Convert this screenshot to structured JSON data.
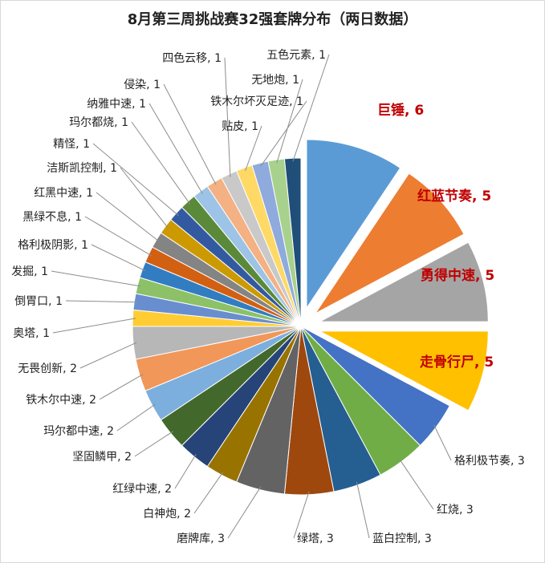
{
  "chart_data": {
    "type": "pie",
    "title": "8月第三周挑战赛32强套牌分布（两日数据）",
    "series": [
      {
        "name": "",
        "labels": [
          "巨锤",
          "红蓝节奏",
          "勇得中速",
          "走骨行尸",
          "格利极节奏",
          "红烧",
          "蓝白控制",
          "绿塔",
          "磨牌库",
          "白神炮",
          "红绿中速",
          "坚固鳞甲",
          "玛尔都中速",
          "铁木尔中速",
          "无畏创新",
          "奥塔",
          "倒胃口",
          "发掘",
          "格利极阴影",
          "黑绿不息",
          "红黑中速",
          "洁斯凯控制",
          "精怪",
          "玛尔都烧",
          "纳雅中速",
          "侵染",
          "四色云移",
          "贴皮",
          "铁木尔坏灭足迹",
          "无地炮",
          "五色元素"
        ],
        "values": [
          6,
          5,
          5,
          5,
          3,
          3,
          3,
          3,
          3,
          2,
          2,
          2,
          2,
          2,
          2,
          1,
          1,
          1,
          1,
          1,
          1,
          1,
          1,
          1,
          1,
          1,
          1,
          1,
          1,
          1,
          1
        ]
      }
    ],
    "colors": [
      "#5b9bd5",
      "#ed7d31",
      "#a5a5a5",
      "#ffc000",
      "#4472c4",
      "#70ad47",
      "#255e91",
      "#9e480e",
      "#636363",
      "#997300",
      "#264478",
      "#43682b",
      "#7cafdd",
      "#f1975a",
      "#b7b7b7",
      "#ffcd33",
      "#698ed0",
      "#8cc168",
      "#327dc2",
      "#d26012",
      "#848484",
      "#cc9a00",
      "#335aa1",
      "#5a8a39",
      "#9dc3e6",
      "#f4b183",
      "#c9c9c9",
      "#ffd966",
      "#8faadc",
      "#a9d18e",
      "#1f4e79"
    ],
    "exploded": [
      "巨锤",
      "红蓝节奏",
      "勇得中速",
      "走骨行尸"
    ],
    "highlight_color": "#c00000",
    "data_labels": "category, value"
  }
}
